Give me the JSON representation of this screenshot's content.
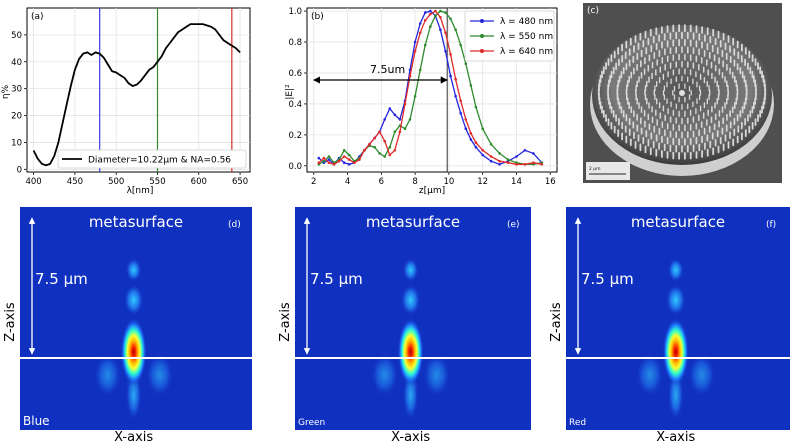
{
  "chart_data": [
    {
      "type": "line",
      "panel_label": "(a)",
      "title": "",
      "xlabel": "λ[nm]",
      "ylabel": "η%",
      "xlim": [
        392,
        662
      ],
      "ylim": [
        -1,
        60
      ],
      "xticks": [
        "400",
        "450",
        "500",
        "550",
        "600",
        "650"
      ],
      "yticks": [
        "0",
        "10",
        "20",
        "30",
        "40",
        "50"
      ],
      "grid": true,
      "legend": "Diameter=10.22μm & NA=0.56",
      "legend_position": "lower-right",
      "series": [
        {
          "name": "Diameter=10.22μm & NA=0.56",
          "color": "#000000",
          "x": [
            400,
            405,
            410,
            415,
            420,
            425,
            430,
            435,
            440,
            445,
            450,
            455,
            460,
            465,
            470,
            475,
            480,
            485,
            490,
            495,
            500,
            505,
            510,
            515,
            520,
            525,
            530,
            535,
            540,
            545,
            550,
            555,
            560,
            565,
            570,
            575,
            580,
            585,
            590,
            595,
            600,
            605,
            610,
            615,
            620,
            625,
            630,
            635,
            640,
            645,
            650
          ],
          "y": [
            7,
            4,
            2,
            1.5,
            2,
            5,
            10,
            17,
            24,
            31,
            37,
            41,
            43,
            43.5,
            42.5,
            43.5,
            43,
            41.5,
            39,
            36.5,
            36,
            35,
            34,
            32,
            31,
            31.5,
            33,
            35,
            37,
            38,
            40,
            42,
            45,
            47,
            49,
            51,
            52,
            53,
            54,
            54,
            54,
            54,
            53.5,
            53,
            52,
            50,
            48,
            47,
            46,
            45,
            43.5
          ]
        }
      ],
      "vlines": [
        {
          "x": 480,
          "color": "#3a3ae8"
        },
        {
          "x": 550,
          "color": "#2e8b2e"
        },
        {
          "x": 640,
          "color": "#d62a2a"
        }
      ]
    },
    {
      "type": "line",
      "panel_label": "(b)",
      "title": "",
      "xlabel": "z[μm]",
      "ylabel": "|E|²",
      "xlim": [
        1.6,
        16.4
      ],
      "ylim": [
        -0.04,
        1.02
      ],
      "xticks": [
        "2",
        "4",
        "6",
        "8",
        "10",
        "12",
        "14",
        "16"
      ],
      "yticks": [
        "0.0",
        "0.2",
        "0.4",
        "0.6",
        "0.8",
        "1.0"
      ],
      "grid": true,
      "legend_position": "top-right",
      "annotation": {
        "text": "7.5um",
        "from": 2,
        "to": 9.9
      },
      "vline": {
        "x": 9.9,
        "color": "#333333"
      },
      "series": [
        {
          "name": "λ = 480 nm",
          "color": "#2525e0",
          "x": [
            2.3,
            2.6,
            2.9,
            3.2,
            3.5,
            3.8,
            4.1,
            4.4,
            4.7,
            5.0,
            5.3,
            5.6,
            5.9,
            6.2,
            6.5,
            6.8,
            7.1,
            7.4,
            7.7,
            8.0,
            8.3,
            8.6,
            8.9,
            9.2,
            9.5,
            9.8,
            10.1,
            10.4,
            10.7,
            11.0,
            11.3,
            11.6,
            12.0,
            12.5,
            13.0,
            13.5,
            14.0,
            14.5,
            15.0,
            15.5
          ],
          "y": [
            0.05,
            0.02,
            0.04,
            0.01,
            0.05,
            0.02,
            0.01,
            0.02,
            0.06,
            0.1,
            0.14,
            0.18,
            0.22,
            0.3,
            0.37,
            0.33,
            0.3,
            0.42,
            0.62,
            0.8,
            0.92,
            0.99,
            1.0,
            0.97,
            0.88,
            0.74,
            0.58,
            0.45,
            0.34,
            0.24,
            0.17,
            0.12,
            0.07,
            0.03,
            0.01,
            0.03,
            0.06,
            0.1,
            0.08,
            0.02
          ]
        },
        {
          "name": "λ = 550 nm",
          "color": "#2e8b2e",
          "x": [
            2.3,
            2.6,
            2.9,
            3.2,
            3.5,
            3.8,
            4.1,
            4.4,
            4.7,
            5.0,
            5.3,
            5.6,
            5.9,
            6.2,
            6.5,
            6.8,
            7.1,
            7.4,
            7.7,
            8.0,
            8.3,
            8.6,
            8.9,
            9.2,
            9.5,
            9.8,
            10.1,
            10.4,
            10.7,
            11.0,
            11.3,
            11.6,
            12.0,
            12.5,
            13.0,
            13.5,
            14.0,
            14.5,
            15.0,
            15.5
          ],
          "y": [
            0.01,
            0.03,
            0.06,
            0.02,
            0.04,
            0.1,
            0.07,
            0.03,
            0.05,
            0.1,
            0.13,
            0.12,
            0.08,
            0.06,
            0.12,
            0.22,
            0.26,
            0.24,
            0.3,
            0.45,
            0.62,
            0.78,
            0.9,
            0.97,
            1.0,
            0.99,
            0.95,
            0.88,
            0.78,
            0.66,
            0.52,
            0.38,
            0.24,
            0.14,
            0.08,
            0.04,
            0.02,
            0.01,
            0.01,
            0.02
          ]
        },
        {
          "name": "λ = 640 nm",
          "color": "#e02a2a",
          "x": [
            2.3,
            2.6,
            2.9,
            3.2,
            3.5,
            3.8,
            4.1,
            4.4,
            4.7,
            5.0,
            5.3,
            5.6,
            5.9,
            6.2,
            6.5,
            6.8,
            7.1,
            7.4,
            7.7,
            8.0,
            8.3,
            8.6,
            8.9,
            9.2,
            9.5,
            9.8,
            10.1,
            10.4,
            10.7,
            11.0,
            11.3,
            11.6,
            12.0,
            12.5,
            13.0,
            13.5,
            14.0,
            14.5,
            15.0,
            15.5
          ],
          "y": [
            0.02,
            0.05,
            0.02,
            0.01,
            0.03,
            0.06,
            0.04,
            0.02,
            0.04,
            0.1,
            0.14,
            0.18,
            0.22,
            0.16,
            0.07,
            0.1,
            0.22,
            0.4,
            0.58,
            0.74,
            0.86,
            0.94,
            0.98,
            1.0,
            0.96,
            0.86,
            0.72,
            0.56,
            0.42,
            0.3,
            0.21,
            0.15,
            0.1,
            0.06,
            0.03,
            0.02,
            0.01,
            0.01,
            0.02,
            0.01
          ]
        }
      ]
    },
    {
      "type": "heatmap",
      "panel_label": "(d)",
      "title": "metasurface",
      "xlabel": "X-axis",
      "ylabel": "Z-axis",
      "annotation": "7.5 µm",
      "corner_label": "Blue"
    },
    {
      "type": "heatmap",
      "panel_label": "(e)",
      "title": "metasurface",
      "xlabel": "X-axis",
      "ylabel": "Z-axis",
      "annotation": "7.5 µm",
      "corner_label": "Green"
    },
    {
      "type": "heatmap",
      "panel_label": "(f)",
      "title": "metasurface",
      "xlabel": "X-axis",
      "ylabel": "Z-axis",
      "annotation": "7.5 µm",
      "corner_label": "Red"
    }
  ],
  "sem_image": {
    "panel_label": "(c)",
    "scale_bar_label": "2 µm"
  }
}
